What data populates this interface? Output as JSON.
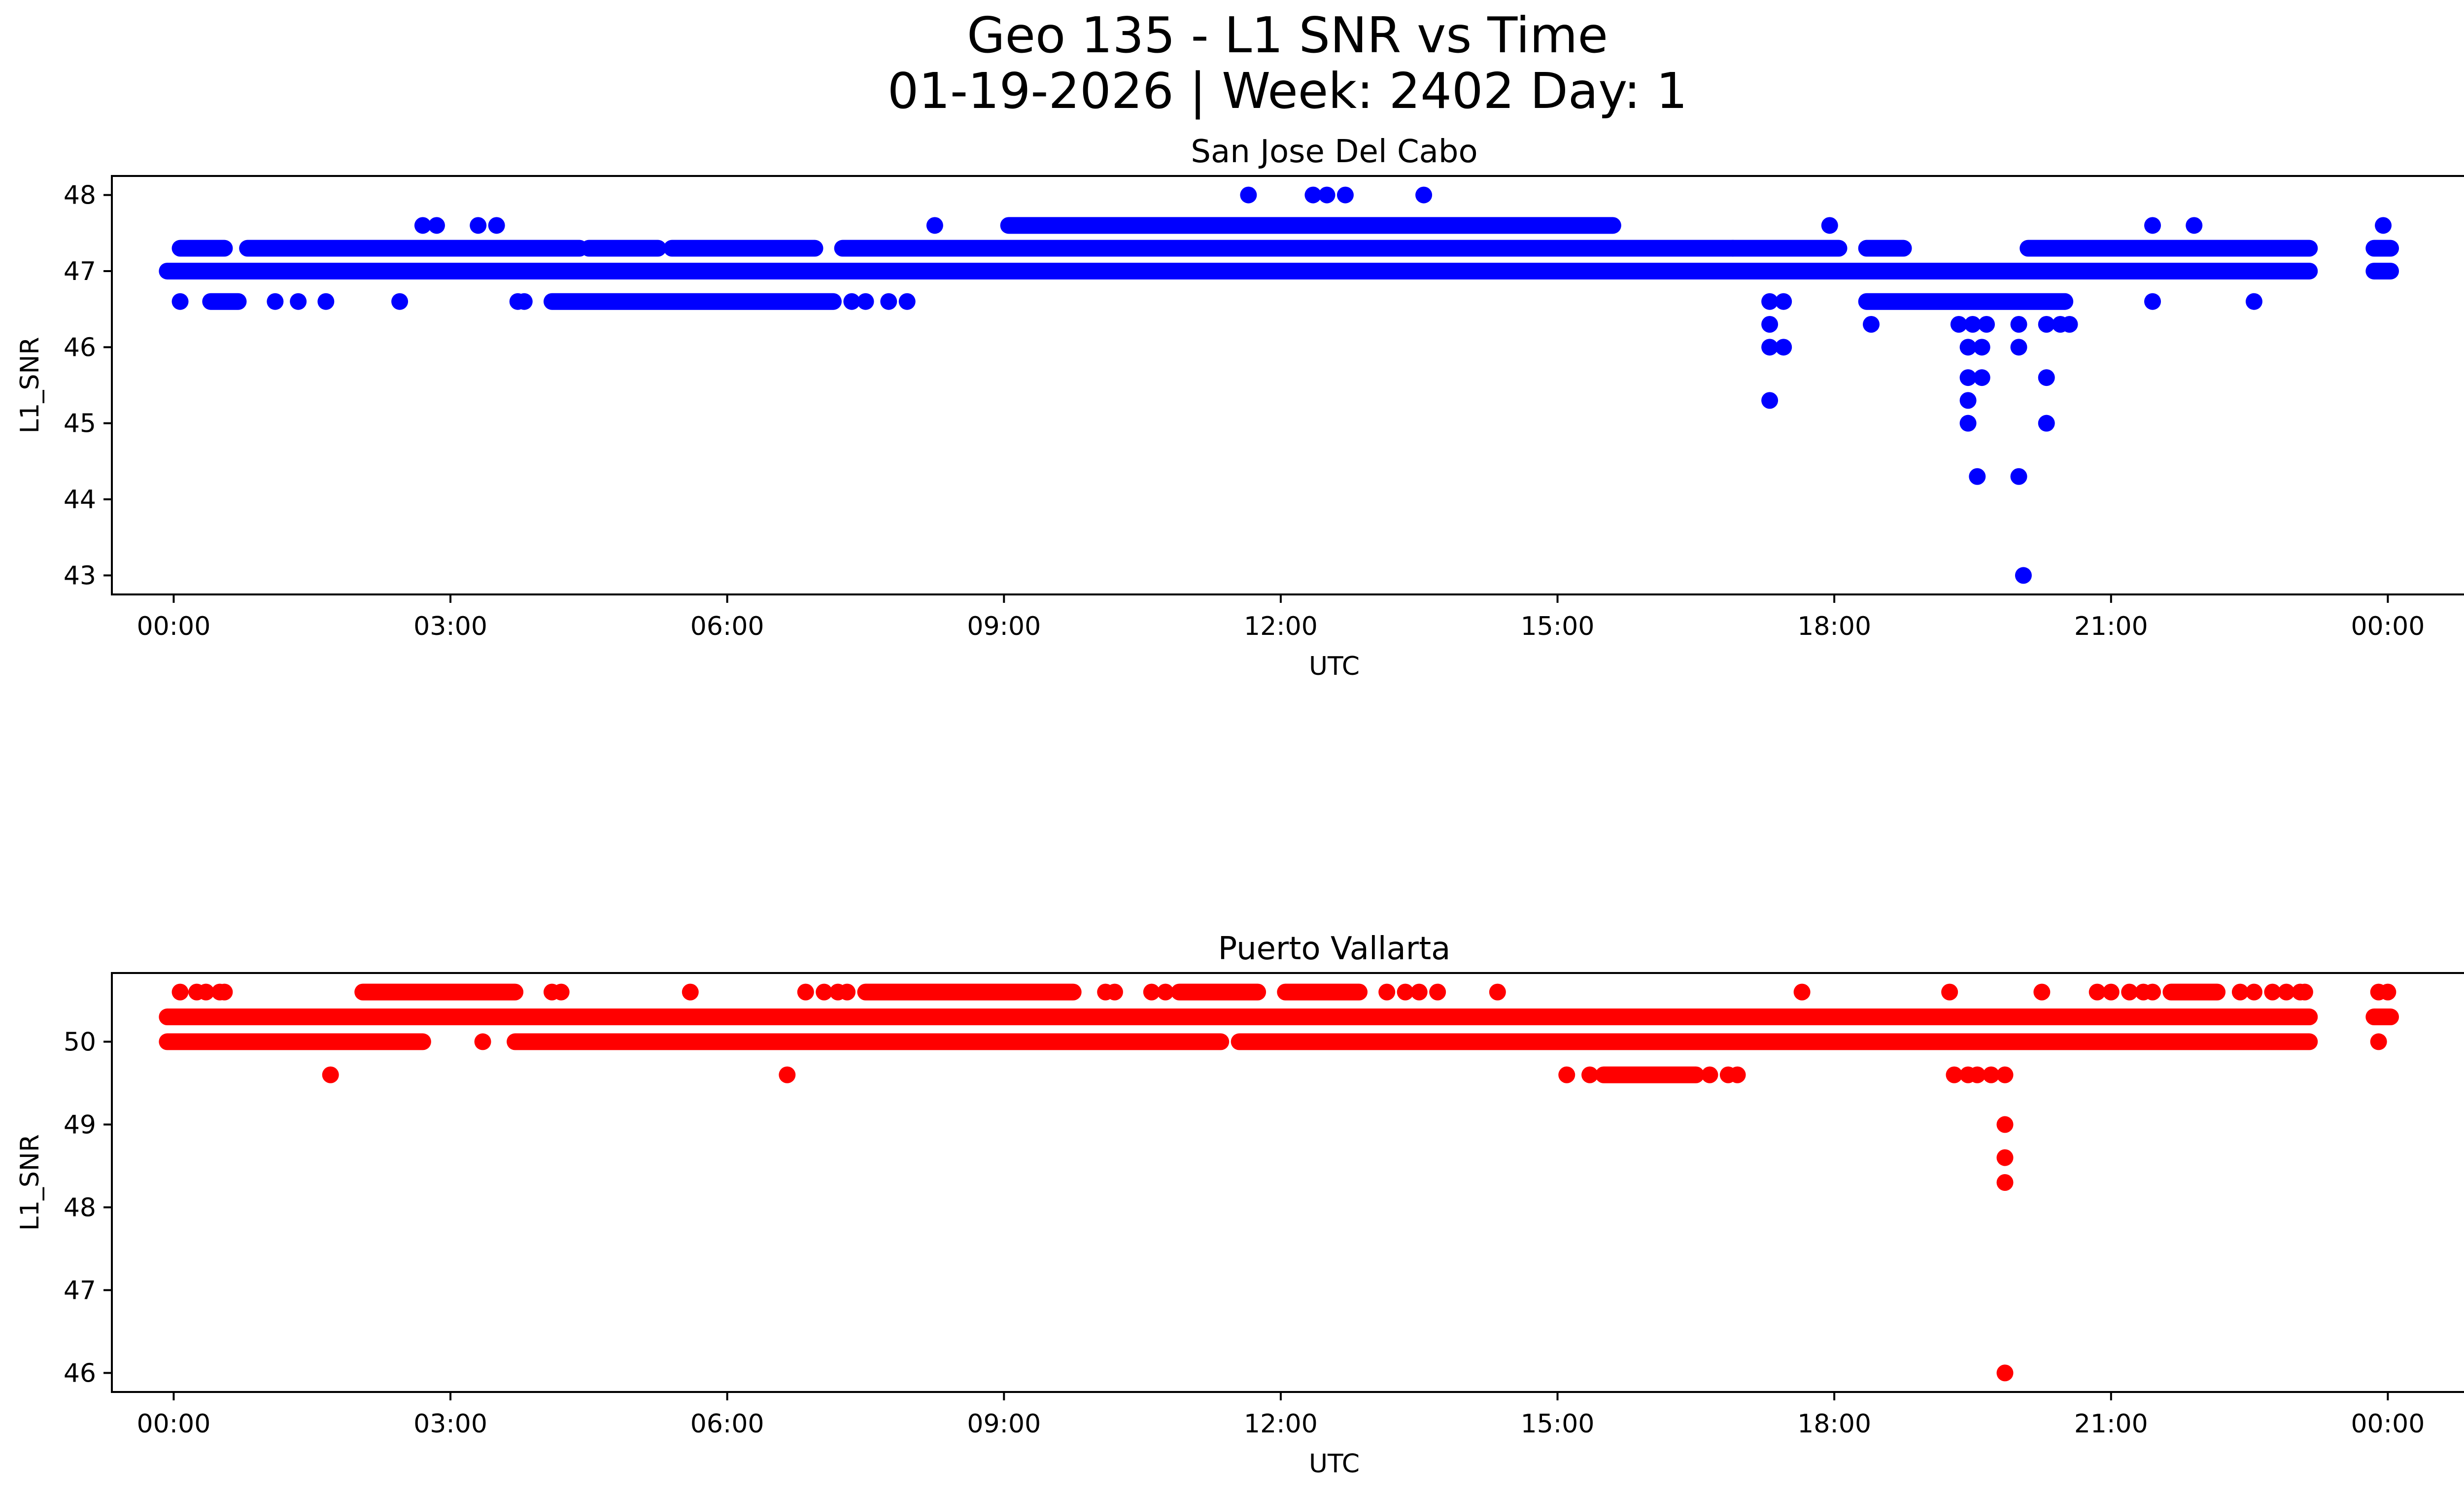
{
  "figure": {
    "title_line1": "Geo 135 - L1 SNR vs Time",
    "title_line2": "01-19-2026 | Week: 2402 Day: 1"
  },
  "chart_data": [
    {
      "type": "scatter",
      "title": "San Jose Del Cabo",
      "xlabel": "UTC",
      "ylabel": "L1_SNR",
      "color": "#0000ff",
      "xlim_hours": [
        -0.67,
        25.83
      ],
      "ylim": [
        42.75,
        48.25
      ],
      "xticks": [
        {
          "v": 0,
          "label": "00:00"
        },
        {
          "v": 3,
          "label": "03:00"
        },
        {
          "v": 6,
          "label": "06:00"
        },
        {
          "v": 9,
          "label": "09:00"
        },
        {
          "v": 12,
          "label": "12:00"
        },
        {
          "v": 15,
          "label": "15:00"
        },
        {
          "v": 18,
          "label": "18:00"
        },
        {
          "v": 21,
          "label": "21:00"
        },
        {
          "v": 24,
          "label": "00:00"
        }
      ],
      "yticks": [
        {
          "v": 43,
          "label": "43"
        },
        {
          "v": 44,
          "label": "44"
        },
        {
          "v": 45,
          "label": "45"
        },
        {
          "v": 46,
          "label": "46"
        },
        {
          "v": 47,
          "label": "47"
        },
        {
          "v": 48,
          "label": "48"
        }
      ],
      "bands": [
        {
          "y": 47.0,
          "x0": -0.07,
          "x1": 23.15
        },
        {
          "y": 47.0,
          "x0": 23.85,
          "x1": 24.03
        },
        {
          "y": 47.3,
          "x0": 0.07,
          "x1": 0.55
        },
        {
          "y": 47.3,
          "x0": 0.8,
          "x1": 4.4
        },
        {
          "y": 47.3,
          "x0": 4.5,
          "x1": 5.25
        },
        {
          "y": 47.3,
          "x0": 5.4,
          "x1": 6.95
        },
        {
          "y": 47.3,
          "x0": 7.25,
          "x1": 16.9
        },
        {
          "y": 47.3,
          "x0": 16.9,
          "x1": 18.05
        },
        {
          "y": 47.3,
          "x0": 18.35,
          "x1": 18.75
        },
        {
          "y": 47.3,
          "x0": 20.1,
          "x1": 23.15
        },
        {
          "y": 47.3,
          "x0": 23.85,
          "x1": 24.03
        },
        {
          "y": 47.6,
          "x0": 9.05,
          "x1": 15.6
        },
        {
          "y": 46.6,
          "x0": 0.4,
          "x1": 0.7
        },
        {
          "y": 46.6,
          "x0": 4.1,
          "x1": 7.15
        },
        {
          "y": 46.6,
          "x0": 18.35,
          "x1": 20.5
        }
      ],
      "points": [
        [
          0.07,
          46.6
        ],
        [
          1.1,
          46.6
        ],
        [
          1.35,
          46.6
        ],
        [
          1.65,
          46.6
        ],
        [
          2.45,
          46.6
        ],
        [
          3.73,
          46.6
        ],
        [
          3.8,
          46.6
        ],
        [
          7.35,
          46.6
        ],
        [
          7.5,
          46.6
        ],
        [
          7.75,
          46.6
        ],
        [
          7.95,
          46.6
        ],
        [
          2.7,
          47.6
        ],
        [
          2.85,
          47.6
        ],
        [
          3.3,
          47.6
        ],
        [
          3.5,
          47.6
        ],
        [
          8.25,
          47.6
        ],
        [
          17.95,
          47.6
        ],
        [
          21.45,
          47.6
        ],
        [
          21.9,
          47.6
        ],
        [
          23.95,
          47.6
        ],
        [
          11.65,
          48.0
        ],
        [
          12.35,
          48.0
        ],
        [
          12.5,
          48.0
        ],
        [
          12.7,
          48.0
        ],
        [
          13.55,
          48.0
        ],
        [
          11.35,
          47.0
        ],
        [
          11.65,
          47.0
        ],
        [
          11.8,
          47.0
        ],
        [
          14.85,
          47.0
        ],
        [
          15.0,
          47.0
        ],
        [
          15.25,
          47.0
        ],
        [
          21.45,
          46.6
        ],
        [
          22.55,
          46.6
        ],
        [
          17.3,
          46.6
        ],
        [
          17.45,
          46.6
        ],
        [
          17.3,
          46.3
        ],
        [
          17.3,
          46.0
        ],
        [
          17.45,
          46.0
        ],
        [
          17.3,
          45.3
        ],
        [
          18.4,
          46.3
        ],
        [
          19.35,
          46.3
        ],
        [
          19.5,
          46.3
        ],
        [
          19.65,
          46.3
        ],
        [
          19.45,
          46.0
        ],
        [
          19.6,
          46.0
        ],
        [
          19.45,
          45.6
        ],
        [
          19.6,
          45.6
        ],
        [
          19.45,
          45.3
        ],
        [
          19.45,
          45.0
        ],
        [
          19.55,
          44.3
        ],
        [
          20.0,
          46.3
        ],
        [
          20.0,
          46.0
        ],
        [
          20.0,
          44.3
        ],
        [
          20.05,
          43.0
        ],
        [
          20.3,
          46.3
        ],
        [
          20.45,
          46.3
        ],
        [
          20.55,
          46.3
        ],
        [
          20.3,
          45.6
        ],
        [
          20.3,
          45.0
        ]
      ]
    },
    {
      "type": "scatter",
      "title": "Puerto Vallarta",
      "xlabel": "UTC",
      "ylabel": "L1_SNR",
      "color": "#ff0000",
      "xlim_hours": [
        -0.67,
        25.83
      ],
      "ylim": [
        45.77,
        50.83
      ],
      "xticks": [
        {
          "v": 0,
          "label": "00:00"
        },
        {
          "v": 3,
          "label": "03:00"
        },
        {
          "v": 6,
          "label": "06:00"
        },
        {
          "v": 9,
          "label": "09:00"
        },
        {
          "v": 12,
          "label": "12:00"
        },
        {
          "v": 15,
          "label": "15:00"
        },
        {
          "v": 18,
          "label": "18:00"
        },
        {
          "v": 21,
          "label": "21:00"
        },
        {
          "v": 24,
          "label": "00:00"
        }
      ],
      "yticks": [
        {
          "v": 46,
          "label": "46"
        },
        {
          "v": 47,
          "label": "47"
        },
        {
          "v": 48,
          "label": "48"
        },
        {
          "v": 49,
          "label": "49"
        },
        {
          "v": 50,
          "label": "50"
        }
      ],
      "bands": [
        {
          "y": 50.3,
          "x0": -0.07,
          "x1": 23.15
        },
        {
          "y": 50.3,
          "x0": 23.85,
          "x1": 24.03
        },
        {
          "y": 50.0,
          "x0": -0.07,
          "x1": 2.7
        },
        {
          "y": 50.0,
          "x0": 3.7,
          "x1": 11.35
        },
        {
          "y": 50.0,
          "x0": 11.55,
          "x1": 23.15
        },
        {
          "y": 50.6,
          "x0": 2.05,
          "x1": 3.7
        },
        {
          "y": 50.6,
          "x0": 7.5,
          "x1": 9.75
        },
        {
          "y": 50.6,
          "x0": 10.9,
          "x1": 11.75
        },
        {
          "y": 50.6,
          "x0": 12.05,
          "x1": 12.85
        },
        {
          "y": 50.6,
          "x0": 21.65,
          "x1": 22.15
        },
        {
          "y": 49.6,
          "x0": 15.5,
          "x1": 16.5
        }
      ],
      "points": [
        [
          0.07,
          50.6
        ],
        [
          0.25,
          50.6
        ],
        [
          0.35,
          50.6
        ],
        [
          0.5,
          50.6
        ],
        [
          0.55,
          50.6
        ],
        [
          4.1,
          50.6
        ],
        [
          4.2,
          50.6
        ],
        [
          5.6,
          50.6
        ],
        [
          6.85,
          50.6
        ],
        [
          7.05,
          50.6
        ],
        [
          7.2,
          50.6
        ],
        [
          7.3,
          50.6
        ],
        [
          10.1,
          50.6
        ],
        [
          10.2,
          50.6
        ],
        [
          10.6,
          50.6
        ],
        [
          10.75,
          50.6
        ],
        [
          13.15,
          50.6
        ],
        [
          13.35,
          50.6
        ],
        [
          13.5,
          50.6
        ],
        [
          13.7,
          50.6
        ],
        [
          14.35,
          50.6
        ],
        [
          17.65,
          50.6
        ],
        [
          19.25,
          50.6
        ],
        [
          20.25,
          50.6
        ],
        [
          20.85,
          50.6
        ],
        [
          21.0,
          50.6
        ],
        [
          21.2,
          50.6
        ],
        [
          21.35,
          50.6
        ],
        [
          21.45,
          50.6
        ],
        [
          22.4,
          50.6
        ],
        [
          22.55,
          50.6
        ],
        [
          22.75,
          50.6
        ],
        [
          22.9,
          50.6
        ],
        [
          23.05,
          50.6
        ],
        [
          23.1,
          50.6
        ],
        [
          23.9,
          50.6
        ],
        [
          24.0,
          50.6
        ],
        [
          3.35,
          50.0
        ],
        [
          23.9,
          50.0
        ],
        [
          1.7,
          49.6
        ],
        [
          6.65,
          49.6
        ],
        [
          15.1,
          49.6
        ],
        [
          15.35,
          49.6
        ],
        [
          16.65,
          49.6
        ],
        [
          16.85,
          49.6
        ],
        [
          16.95,
          49.6
        ],
        [
          19.3,
          49.6
        ],
        [
          19.45,
          49.6
        ],
        [
          19.55,
          49.6
        ],
        [
          19.7,
          49.6
        ],
        [
          19.85,
          49.6
        ],
        [
          19.85,
          49.0
        ],
        [
          19.85,
          48.6
        ],
        [
          19.85,
          48.3
        ],
        [
          19.85,
          46.0
        ]
      ]
    }
  ]
}
